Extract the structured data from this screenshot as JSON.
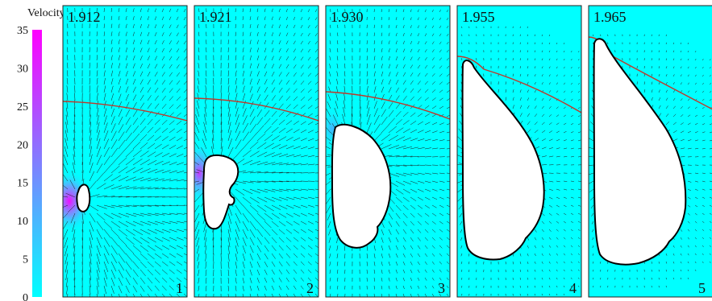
{
  "colorbar": {
    "label": "Velocity",
    "ticks": [
      0,
      5,
      10,
      15,
      20,
      25,
      30,
      35
    ],
    "range": [
      0,
      35
    ],
    "color_low": "#00ffff",
    "color_high": "#ff00ff"
  },
  "colors": {
    "background_field": "#00ffff",
    "free_surface": "#c0392b",
    "bubble_fill": "#ffffff",
    "bubble_outline": "#000000",
    "vectors": "#1a1a1a"
  },
  "panels": [
    {
      "time": "1.912",
      "index": "1"
    },
    {
      "time": "1.921",
      "index": "2"
    },
    {
      "time": "1.930",
      "index": "3"
    },
    {
      "time": "1.955",
      "index": "4"
    },
    {
      "time": "1.965",
      "index": "5"
    }
  ]
}
